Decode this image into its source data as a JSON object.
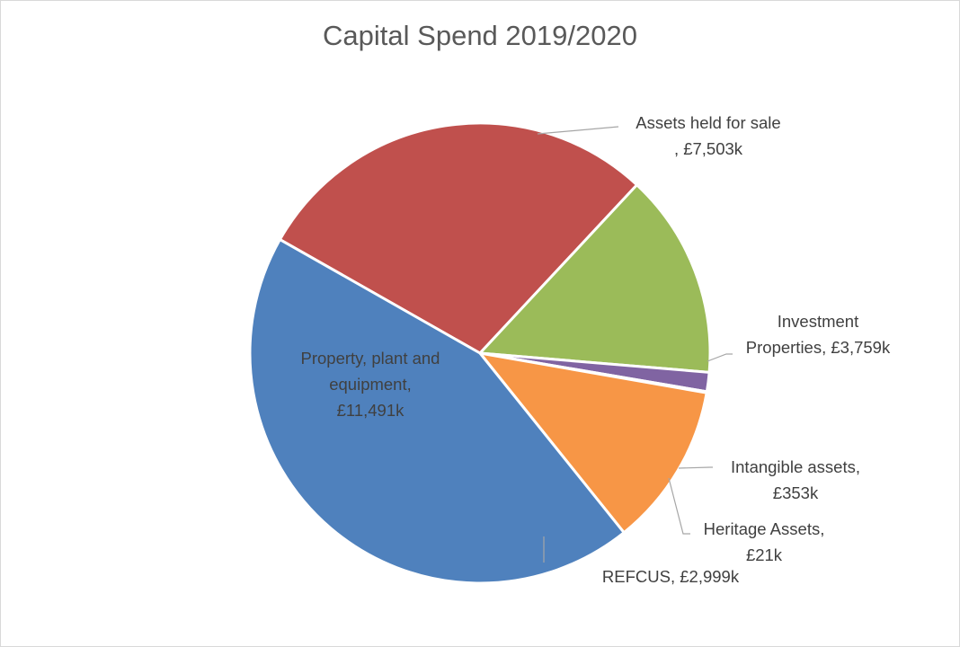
{
  "chart_data": {
    "type": "pie",
    "title": "Capital Spend 2019/2020",
    "unit": "£k",
    "slices": [
      {
        "name": "Assets held for sale",
        "value": 7503,
        "color": "#c0504d",
        "label_lines": [
          "Assets held for sale",
          ", £7,503k"
        ]
      },
      {
        "name": "Investment Properties",
        "value": 3759,
        "color": "#9bbb59",
        "label_lines": [
          "Investment",
          "Properties, £3,759k"
        ]
      },
      {
        "name": "Intangible assets",
        "value": 353,
        "color": "#8064a2",
        "label_lines": [
          "Intangible assets,",
          "£353k"
        ]
      },
      {
        "name": "Heritage Assets",
        "value": 21,
        "color": "#4bacc6",
        "label_lines": [
          "Heritage Assets,",
          "£21k"
        ]
      },
      {
        "name": "REFCUS",
        "value": 2999,
        "color": "#f79646",
        "label_lines": [
          "REFCUS, £2,999k"
        ]
      },
      {
        "name": "Property, plant and equipment",
        "value": 11491,
        "color": "#4f81bd",
        "label_lines": [
          "Property, plant and",
          "equipment,",
          "£11,491k"
        ]
      }
    ],
    "legend": "none",
    "data_labels": "outside with leader lines (inside for largest slice)"
  }
}
